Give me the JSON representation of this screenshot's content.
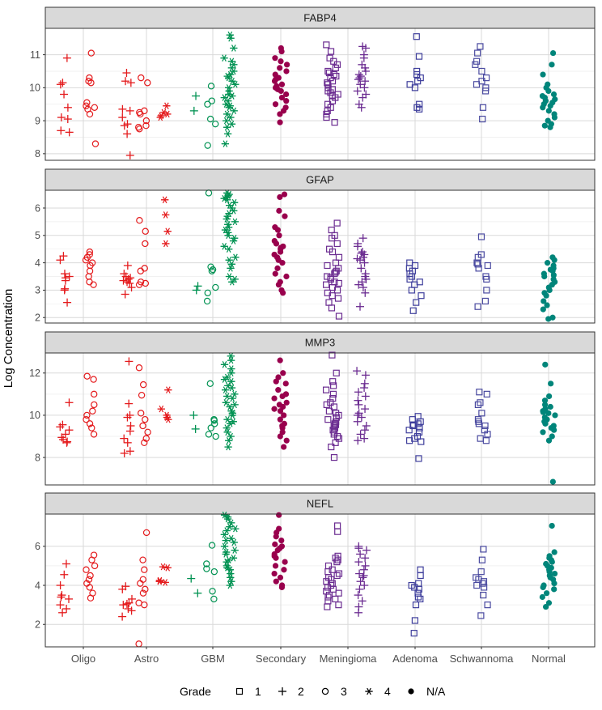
{
  "chart_data": {
    "type": "scatter",
    "ylabel": "Log Concentration",
    "xlabel": "",
    "categories": [
      "Oligo",
      "Astro",
      "GBM",
      "Secondary",
      "Meningioma",
      "Adenoma",
      "Schwannoma",
      "Normal"
    ],
    "legend": {
      "title": "Grade",
      "placement": "bottom",
      "entries": [
        {
          "label": "1",
          "shape": "square"
        },
        {
          "label": "2",
          "shape": "plus"
        },
        {
          "label": "3",
          "shape": "circle"
        },
        {
          "label": "4",
          "shape": "asterisk"
        },
        {
          "label": "N/A",
          "shape": "dot"
        }
      ]
    },
    "colors": {
      "Oligo": "#e41a1c",
      "Astro": "#e41a1c",
      "GBM": "#009252",
      "Secondary": "#99004d",
      "Meningioma": "#6b2c91",
      "Adenoma": "#3f3f9c",
      "Schwannoma": "#4a4aa0",
      "Normal": "#00857a"
    },
    "groups": [
      {
        "category": "Oligo",
        "grade": "2",
        "shape": "plus"
      },
      {
        "category": "Oligo",
        "grade": "3",
        "shape": "circle"
      },
      {
        "category": "Astro",
        "grade": "2",
        "shape": "plus"
      },
      {
        "category": "Astro",
        "grade": "3",
        "shape": "circle"
      },
      {
        "category": "Astro",
        "grade": "4",
        "shape": "asterisk"
      },
      {
        "category": "GBM",
        "grade": "2",
        "shape": "plus"
      },
      {
        "category": "GBM",
        "grade": "3",
        "shape": "circle"
      },
      {
        "category": "GBM",
        "grade": "4",
        "shape": "asterisk"
      },
      {
        "category": "Secondary",
        "grade": "N/A",
        "shape": "dot"
      },
      {
        "category": "Meningioma",
        "grade": "1",
        "shape": "square"
      },
      {
        "category": "Meningioma",
        "grade": "2",
        "shape": "plus"
      },
      {
        "category": "Adenoma",
        "grade": "1",
        "shape": "square"
      },
      {
        "category": "Schwannoma",
        "grade": "1",
        "shape": "square"
      },
      {
        "category": "Normal",
        "grade": "N/A",
        "shape": "dot"
      }
    ],
    "facets": [
      {
        "title": "FABP4",
        "ylim": [
          7.8,
          11.8
        ],
        "yticks": [
          8,
          9,
          10,
          11
        ],
        "points": [
          [
            10.9,
            10.1,
            9.8,
            9.4,
            9.1,
            9.05,
            8.7,
            8.65,
            10.15
          ],
          [
            11.05,
            10.3,
            10.2,
            10.15,
            9.55,
            9.45,
            9.4,
            9.35,
            9.2,
            8.3
          ],
          [
            10.45,
            10.2,
            10.15,
            9.35,
            9.3,
            9.1,
            8.9,
            8.85,
            8.6,
            7.95
          ],
          [
            10.3,
            10.15,
            9.3,
            9.25,
            9.2,
            9.0,
            8.85,
            8.8,
            8.75
          ],
          [
            9.45,
            9.25,
            9.2,
            9.15,
            9.1
          ],
          [
            9.75,
            9.3
          ],
          [
            10.05,
            9.6,
            9.5,
            9.05,
            8.9,
            8.25
          ],
          [
            11.6,
            11.5,
            11.2,
            10.9,
            10.8,
            10.6,
            10.5,
            10.4,
            10.3,
            10.2,
            10.1,
            10.0,
            9.9,
            9.8,
            9.7,
            9.6,
            9.5,
            9.4,
            9.3,
            9.2,
            9.1,
            9.0,
            8.9,
            8.8,
            8.6,
            8.3,
            10.7,
            10.35,
            9.75,
            9.45
          ],
          [
            11.2,
            11.1,
            10.9,
            10.8,
            10.7,
            10.6,
            10.5,
            10.4,
            10.3,
            10.2,
            10.1,
            10.05,
            10.0,
            9.95,
            9.9,
            9.8,
            9.7,
            9.6,
            9.5,
            9.4,
            9.3,
            9.2,
            8.95,
            10.25
          ],
          [
            11.3,
            11.1,
            10.9,
            10.8,
            10.7,
            10.6,
            10.5,
            10.4,
            10.35,
            10.3,
            10.2,
            10.1,
            10.0,
            9.95,
            9.9,
            9.85,
            9.8,
            9.7,
            9.6,
            9.5,
            9.4,
            9.3,
            9.2,
            9.1,
            8.95,
            10.45,
            10.15,
            9.75
          ],
          [
            11.25,
            11.2,
            11.0,
            10.9,
            10.7,
            10.6,
            10.5,
            10.4,
            10.3,
            10.2,
            10.1,
            10.0,
            9.9,
            9.8,
            9.7,
            9.5,
            9.4,
            10.35,
            10.25
          ],
          [
            11.55,
            10.95,
            10.5,
            10.4,
            10.3,
            10.2,
            10.1,
            10.0,
            9.5,
            9.4,
            9.35
          ],
          [
            11.25,
            11.05,
            10.8,
            10.7,
            10.5,
            10.3,
            10.2,
            10.1,
            10.0,
            9.9,
            9.4,
            9.05
          ],
          [
            11.05,
            10.7,
            10.4,
            10.1,
            10.0,
            9.9,
            9.8,
            9.7,
            9.65,
            9.6,
            9.55,
            9.5,
            9.45,
            9.4,
            9.3,
            9.2,
            9.1,
            9.0,
            8.9,
            8.85,
            8.8,
            9.75
          ]
        ]
      },
      {
        "title": "GFAP",
        "ylim": [
          1.8,
          6.65
        ],
        "yticks": [
          2,
          3,
          4,
          5,
          6
        ],
        "points": [
          [
            4.25,
            4.1,
            3.6,
            3.5,
            3.45,
            3.35,
            3.05,
            3.0,
            2.55
          ],
          [
            4.4,
            4.3,
            4.2,
            4.1,
            4.0,
            3.9,
            3.7,
            3.5,
            3.3,
            3.2
          ],
          [
            3.9,
            3.6,
            3.5,
            3.45,
            3.4,
            3.35,
            3.3,
            3.25,
            3.1,
            2.85
          ],
          [
            5.55,
            5.15,
            4.7,
            3.8,
            3.7,
            3.3,
            3.25,
            3.2
          ],
          [
            6.3,
            5.75,
            5.15,
            4.7
          ],
          [
            3.15,
            3.0
          ],
          [
            6.55,
            3.85,
            3.75,
            3.7,
            3.1,
            2.9,
            2.6
          ],
          [
            6.55,
            6.5,
            6.45,
            6.4,
            6.3,
            6.2,
            6.1,
            6.0,
            5.9,
            5.8,
            5.7,
            5.6,
            5.5,
            5.4,
            5.3,
            5.2,
            5.0,
            4.9,
            4.8,
            4.6,
            4.5,
            4.2,
            4.1,
            3.95,
            3.8,
            3.5,
            3.4,
            3.3,
            6.35,
            5.1
          ],
          [
            6.5,
            6.4,
            5.9,
            5.7,
            5.3,
            5.2,
            5.0,
            4.8,
            4.7,
            4.6,
            4.5,
            4.4,
            4.3,
            4.2,
            4.1,
            4.0,
            3.8,
            3.6,
            3.5,
            3.3,
            3.2,
            3.0,
            2.9,
            4.55
          ],
          [
            5.45,
            5.2,
            5.0,
            4.9,
            4.7,
            4.5,
            4.4,
            4.2,
            4.0,
            3.9,
            3.8,
            3.7,
            3.6,
            3.5,
            3.45,
            3.4,
            3.3,
            3.2,
            3.1,
            3.0,
            2.9,
            2.8,
            2.7,
            2.55,
            2.35,
            2.05,
            3.65,
            3.25
          ],
          [
            4.9,
            4.7,
            4.6,
            4.4,
            4.35,
            4.3,
            4.2,
            4.1,
            4.0,
            3.8,
            3.6,
            3.5,
            3.4,
            3.3,
            3.2,
            3.1,
            2.9,
            2.4,
            4.15
          ],
          [
            4.0,
            3.9,
            3.8,
            3.7,
            3.6,
            3.5,
            3.4,
            3.3,
            3.2,
            3.0,
            2.8,
            2.55,
            2.25
          ],
          [
            4.95,
            4.3,
            4.2,
            4.0,
            3.95,
            3.9,
            3.8,
            3.5,
            3.4,
            3.0,
            2.6,
            2.4
          ],
          [
            4.2,
            4.1,
            4.0,
            3.9,
            3.8,
            3.7,
            3.6,
            3.5,
            3.4,
            3.3,
            3.2,
            3.1,
            3.0,
            2.9,
            2.8,
            2.6,
            2.45,
            2.3,
            2.0,
            1.95,
            3.55,
            3.75
          ]
        ]
      },
      {
        "title": "MMP3",
        "ylim": [
          6.7,
          12.95
        ],
        "yticks": [
          8,
          10,
          12
        ],
        "points": [
          [
            10.6,
            9.55,
            9.3,
            9.1,
            8.95,
            8.85,
            8.75,
            8.7,
            9.45
          ],
          [
            11.85,
            11.7,
            11.0,
            10.5,
            10.2,
            10.0,
            9.8,
            9.6,
            9.4,
            9.1
          ],
          [
            12.55,
            10.55,
            10.0,
            9.9,
            9.5,
            9.25,
            8.9,
            8.7,
            8.3,
            8.2
          ],
          [
            12.25,
            11.45,
            10.95,
            10.1,
            9.8,
            9.5,
            9.2,
            8.9,
            8.7
          ],
          [
            11.2,
            10.3,
            10.0,
            9.9,
            9.8
          ],
          [
            10.0,
            9.35
          ],
          [
            11.5,
            9.8,
            9.75,
            9.6,
            9.4,
            9.1,
            9.0
          ],
          [
            12.8,
            12.6,
            12.4,
            12.2,
            12.0,
            11.8,
            11.6,
            11.4,
            11.2,
            11.0,
            10.8,
            10.6,
            10.4,
            10.2,
            10.0,
            9.8,
            9.6,
            9.4,
            9.2,
            9.0,
            8.8,
            8.5,
            11.7,
            11.3,
            10.9,
            10.5,
            10.1,
            9.7
          ],
          [
            12.6,
            12.0,
            11.8,
            11.6,
            11.5,
            11.2,
            11.0,
            10.9,
            10.8,
            10.6,
            10.5,
            10.4,
            10.2,
            10.0,
            9.8,
            9.6,
            9.5,
            9.4,
            9.2,
            9.0,
            8.8,
            8.5,
            10.3
          ],
          [
            12.85,
            12.0,
            11.6,
            11.4,
            11.2,
            11.0,
            10.8,
            10.6,
            10.5,
            10.4,
            10.2,
            10.0,
            9.9,
            9.8,
            9.7,
            9.6,
            9.5,
            9.4,
            9.3,
            9.2,
            9.1,
            9.0,
            8.9,
            8.7,
            8.5,
            8.0,
            10.1,
            9.55
          ],
          [
            12.1,
            11.9,
            11.5,
            11.3,
            11.1,
            10.9,
            10.7,
            10.5,
            10.3,
            10.1,
            9.9,
            9.7,
            9.5,
            9.3,
            9.1,
            8.9,
            8.8,
            10.0
          ],
          [
            9.95,
            9.8,
            9.7,
            9.6,
            9.55,
            9.5,
            9.4,
            9.3,
            9.2,
            9.0,
            8.9,
            8.8,
            8.75,
            7.95
          ],
          [
            11.1,
            11.0,
            10.6,
            10.5,
            10.1,
            9.8,
            9.7,
            9.6,
            9.5,
            9.3,
            9.1,
            8.9,
            8.8
          ],
          [
            12.4,
            11.5,
            10.9,
            10.7,
            10.5,
            10.4,
            10.3,
            10.2,
            10.1,
            10.0,
            9.9,
            9.8,
            9.7,
            9.6,
            9.5,
            9.4,
            9.3,
            9.2,
            9.0,
            8.8,
            6.85,
            10.15
          ]
        ]
      },
      {
        "title": "NEFL",
        "ylim": [
          0.85,
          7.65
        ],
        "yticks": [
          2,
          4,
          6
        ],
        "points": [
          [
            5.1,
            4.55,
            4.0,
            3.5,
            3.4,
            3.3,
            3.0,
            2.8,
            2.6
          ],
          [
            5.55,
            5.3,
            5.0,
            4.8,
            4.5,
            4.3,
            4.1,
            3.9,
            3.6,
            3.35
          ],
          [
            3.95,
            3.8,
            3.3,
            3.1,
            3.05,
            3.0,
            2.8,
            2.7,
            2.4
          ],
          [
            6.7,
            5.3,
            4.8,
            4.3,
            4.1,
            3.8,
            3.6,
            3.1,
            3.0,
            1.0
          ],
          [
            4.95,
            4.9,
            4.25,
            4.2,
            4.15
          ],
          [
            4.35,
            3.6
          ],
          [
            6.05,
            5.1,
            4.85,
            4.7,
            3.7,
            3.3
          ],
          [
            7.6,
            7.5,
            7.4,
            7.2,
            7.0,
            6.8,
            6.6,
            6.4,
            6.2,
            6.0,
            5.8,
            5.6,
            5.4,
            5.2,
            5.0,
            4.8,
            4.6,
            4.4,
            4.2,
            4.0,
            6.9,
            6.3,
            5.7,
            5.3,
            4.9
          ],
          [
            7.6,
            6.9,
            6.7,
            6.5,
            6.3,
            6.1,
            6.0,
            5.8,
            5.6,
            5.4,
            5.2,
            5.0,
            4.8,
            4.6,
            4.4,
            4.2,
            4.0,
            3.9,
            5.9,
            5.5
          ],
          [
            7.05,
            6.75,
            5.5,
            5.4,
            5.3,
            5.2,
            5.0,
            4.8,
            4.6,
            4.4,
            4.3,
            4.2,
            4.1,
            4.0,
            3.9,
            3.8,
            3.7,
            3.6,
            3.5,
            3.4,
            3.3,
            3.2,
            3.0,
            2.9,
            4.5,
            4.7
          ],
          [
            6.0,
            5.8,
            5.6,
            5.4,
            5.2,
            5.0,
            4.8,
            4.6,
            4.4,
            4.2,
            4.0,
            3.8,
            3.5,
            3.2,
            2.9,
            2.6,
            5.9,
            4.5
          ],
          [
            4.8,
            4.5,
            4.1,
            4.0,
            3.9,
            3.8,
            3.6,
            3.4,
            3.3,
            3.0,
            2.2,
            1.55
          ],
          [
            5.85,
            5.3,
            4.7,
            4.4,
            4.3,
            4.2,
            4.1,
            4.0,
            3.9,
            3.5,
            3.0,
            2.45
          ],
          [
            7.05,
            5.7,
            5.5,
            5.4,
            5.3,
            5.2,
            5.1,
            5.0,
            4.9,
            4.8,
            4.6,
            4.5,
            4.4,
            4.3,
            4.1,
            4.0,
            3.9,
            3.8,
            3.6,
            3.4,
            3.1,
            2.9,
            4.7
          ]
        ]
      }
    ]
  }
}
